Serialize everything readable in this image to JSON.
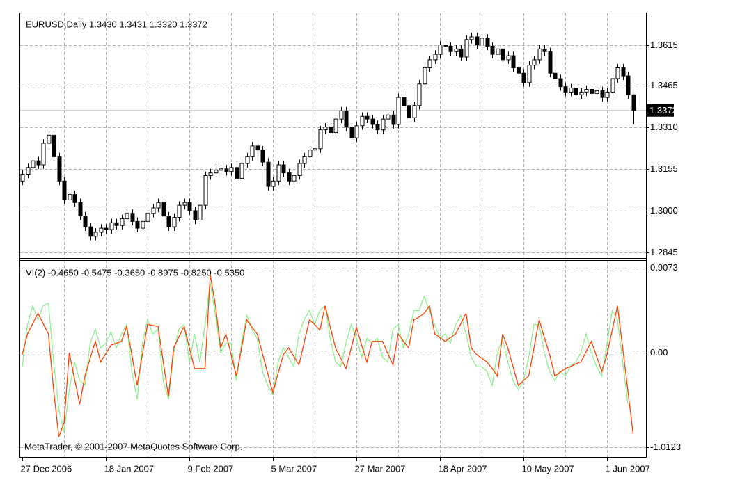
{
  "chart_data": [
    {
      "type": "candlestick",
      "title": "EURUSD,Daily  1.3430 1.3431 1.3320 1.3372",
      "categories": [
        "27 Dec 2006",
        null,
        null,
        null,
        null,
        null,
        null,
        null,
        null,
        null,
        null,
        null,
        null,
        null,
        null,
        null,
        "18 Jan 2007",
        null,
        null,
        null,
        null,
        null,
        null,
        null,
        null,
        null,
        null,
        null,
        null,
        null,
        null,
        null,
        "9 Feb 2007",
        null,
        null,
        null,
        null,
        null,
        null,
        null,
        null,
        null,
        null,
        null,
        null,
        null,
        null,
        null,
        "5 Mar 2007",
        null,
        null,
        null,
        null,
        null,
        null,
        null,
        null,
        null,
        null,
        null,
        null,
        null,
        null,
        null,
        "27 Mar 2007",
        null,
        null,
        null,
        null,
        null,
        null,
        null,
        null,
        null,
        null,
        null,
        null,
        null,
        null,
        null,
        "18 Apr 2007",
        null,
        null,
        null,
        null,
        null,
        null,
        null,
        null,
        null,
        null,
        null,
        null,
        null,
        null,
        null,
        "10 May 2007",
        null,
        null,
        null,
        null,
        null,
        null,
        null,
        null,
        null,
        null,
        null,
        null,
        null,
        null,
        null,
        "1 Jun 2007",
        null,
        null,
        null,
        null,
        null
      ],
      "open": [
        1.311,
        1.3135,
        1.316,
        1.3185,
        1.317,
        1.325,
        1.328,
        1.32,
        1.311,
        1.304,
        1.306,
        1.303,
        1.298,
        1.294,
        1.2905,
        1.292,
        1.2935,
        1.293,
        1.2955,
        1.2945,
        1.297,
        1.299,
        1.296,
        1.2935,
        1.296,
        1.299,
        1.301,
        1.303,
        1.298,
        1.294,
        1.2975,
        1.302,
        1.303,
        1.3,
        1.2965,
        1.302,
        1.313,
        1.314,
        1.315,
        1.3155,
        1.3145,
        1.316,
        1.312,
        1.3175,
        1.32,
        1.324,
        1.3225,
        1.318,
        1.309,
        1.311,
        1.317,
        1.314,
        1.311,
        1.313,
        1.3175,
        1.32,
        1.3225,
        1.323,
        1.33,
        1.331,
        1.329,
        1.334,
        1.337,
        1.331,
        1.327,
        1.3315,
        1.335,
        1.334,
        1.332,
        1.33,
        1.334,
        1.3355,
        1.332,
        1.342,
        1.339,
        1.3345,
        1.339,
        1.347,
        1.353,
        1.356,
        1.358,
        1.3615,
        1.361,
        1.359,
        1.36,
        1.357,
        1.3635,
        1.3645,
        1.3615,
        1.364,
        1.361,
        1.358,
        1.36,
        1.356,
        1.3575,
        1.353,
        1.351,
        1.3475,
        1.354,
        1.356,
        1.36,
        1.359,
        1.351,
        1.349,
        1.346,
        1.344,
        1.3455,
        1.343,
        1.344,
        1.345,
        1.3435,
        1.3445,
        1.342,
        1.344,
        1.349,
        1.353,
        1.35,
        1.343
      ],
      "high": [
        1.315,
        1.3175,
        1.32,
        1.32,
        1.3265,
        1.3295,
        1.3295,
        1.3215,
        1.3125,
        1.3075,
        1.3075,
        1.3045,
        1.2995,
        1.2955,
        1.2935,
        1.295,
        1.295,
        1.297,
        1.297,
        1.2985,
        1.3005,
        1.3005,
        1.2975,
        1.2975,
        1.3005,
        1.3025,
        1.3045,
        1.3045,
        1.2995,
        1.299,
        1.3035,
        1.3045,
        1.3045,
        1.3015,
        1.3035,
        1.3145,
        1.3155,
        1.3165,
        1.317,
        1.317,
        1.3175,
        1.3175,
        1.319,
        1.3215,
        1.3255,
        1.3255,
        1.324,
        1.3195,
        1.3125,
        1.3185,
        1.3185,
        1.3155,
        1.3145,
        1.319,
        1.3215,
        1.324,
        1.3245,
        1.3315,
        1.3325,
        1.3325,
        1.3355,
        1.3385,
        1.3385,
        1.3325,
        1.333,
        1.3365,
        1.3365,
        1.3355,
        1.3335,
        1.3355,
        1.337,
        1.337,
        1.3435,
        1.3435,
        1.3405,
        1.3405,
        1.3485,
        1.3545,
        1.3575,
        1.3595,
        1.363,
        1.363,
        1.3625,
        1.3615,
        1.3615,
        1.365,
        1.366,
        1.366,
        1.3655,
        1.3655,
        1.3625,
        1.3615,
        1.3615,
        1.359,
        1.359,
        1.3545,
        1.3525,
        1.3555,
        1.3575,
        1.3615,
        1.3615,
        1.3605,
        1.3525,
        1.3505,
        1.3475,
        1.347,
        1.347,
        1.3455,
        1.3465,
        1.3465,
        1.346,
        1.346,
        1.3455,
        1.3505,
        1.3545,
        1.3545,
        1.3515,
        1.3431
      ],
      "low": [
        1.3095,
        1.312,
        1.3145,
        1.3155,
        1.3155,
        1.3235,
        1.3185,
        1.3095,
        1.3025,
        1.3025,
        1.3015,
        1.2965,
        1.2925,
        1.289,
        1.289,
        1.2905,
        1.2915,
        1.2915,
        1.293,
        1.293,
        1.2955,
        1.2945,
        1.292,
        1.292,
        1.2945,
        1.2975,
        1.2995,
        1.2965,
        1.2925,
        1.2925,
        1.296,
        1.3005,
        1.2985,
        1.295,
        1.295,
        1.3005,
        1.3115,
        1.3125,
        1.3135,
        1.313,
        1.313,
        1.3105,
        1.3105,
        1.316,
        1.3185,
        1.321,
        1.3165,
        1.3075,
        1.3075,
        1.3095,
        1.3125,
        1.3095,
        1.3095,
        1.3115,
        1.316,
        1.3185,
        1.321,
        1.3215,
        1.3285,
        1.3275,
        1.3275,
        1.3325,
        1.3295,
        1.3255,
        1.3255,
        1.33,
        1.3325,
        1.3305,
        1.3285,
        1.3285,
        1.3325,
        1.3305,
        1.3305,
        1.3375,
        1.333,
        1.333,
        1.3375,
        1.3455,
        1.3515,
        1.3545,
        1.3565,
        1.3595,
        1.3575,
        1.3575,
        1.3555,
        1.3555,
        1.362,
        1.36,
        1.36,
        1.3595,
        1.3565,
        1.3565,
        1.3545,
        1.3545,
        1.3515,
        1.3495,
        1.346,
        1.346,
        1.3525,
        1.3545,
        1.3575,
        1.3495,
        1.3475,
        1.3445,
        1.3425,
        1.3425,
        1.3415,
        1.3415,
        1.3425,
        1.342,
        1.342,
        1.3405,
        1.3405,
        1.3425,
        1.3475,
        1.3485,
        1.3415,
        1.332
      ],
      "close": [
        1.3135,
        1.316,
        1.3185,
        1.317,
        1.325,
        1.328,
        1.32,
        1.311,
        1.304,
        1.306,
        1.303,
        1.298,
        1.294,
        1.2905,
        1.292,
        1.2935,
        1.293,
        1.2955,
        1.2945,
        1.297,
        1.299,
        1.296,
        1.2935,
        1.296,
        1.299,
        1.301,
        1.303,
        1.298,
        1.294,
        1.2975,
        1.302,
        1.303,
        1.3,
        1.2965,
        1.302,
        1.313,
        1.314,
        1.315,
        1.3155,
        1.3145,
        1.316,
        1.312,
        1.3175,
        1.32,
        1.324,
        1.3225,
        1.318,
        1.309,
        1.311,
        1.317,
        1.314,
        1.311,
        1.313,
        1.3175,
        1.32,
        1.3225,
        1.323,
        1.33,
        1.331,
        1.329,
        1.334,
        1.337,
        1.331,
        1.327,
        1.3315,
        1.335,
        1.334,
        1.332,
        1.33,
        1.334,
        1.3355,
        1.332,
        1.342,
        1.339,
        1.3345,
        1.339,
        1.347,
        1.353,
        1.356,
        1.358,
        1.3615,
        1.361,
        1.359,
        1.36,
        1.357,
        1.3635,
        1.3645,
        1.3615,
        1.364,
        1.361,
        1.358,
        1.36,
        1.356,
        1.3575,
        1.353,
        1.351,
        1.3475,
        1.354,
        1.356,
        1.36,
        1.359,
        1.351,
        1.349,
        1.346,
        1.344,
        1.3455,
        1.343,
        1.344,
        1.345,
        1.3435,
        1.3445,
        1.342,
        1.344,
        1.349,
        1.353,
        1.35,
        1.343,
        1.3372
      ],
      "ylim": [
        1.2832,
        1.373
      ],
      "yticks": [
        1.2845,
        {
          "value": 1.3,
          "label": "1.3000"
        },
        1.3155,
        {
          "value": 1.331,
          "label": "1.3310"
        },
        1.3465,
        1.3615
      ],
      "grid": true
    },
    {
      "type": "line",
      "title": "VI(2) -0.4650 -0.5475 -0.3650 -0.8975 -0.8250 -0.5350",
      "series": [
        {
          "color": "#ff4000",
          "values": [
            -0.02,
            0.2,
            0.31,
            0.42,
            0.31,
            0.2,
            -0.4,
            -0.9,
            -0.75,
            0.0,
            -0.28,
            -0.55,
            -0.25,
            -0.06,
            0.12,
            -0.1,
            -0.01,
            0.08,
            0.1,
            0.12,
            0.28,
            -0.03,
            -0.35,
            -0.02,
            0.3,
            0.29,
            0.28,
            -0.1,
            -0.47,
            0.05,
            0.17,
            0.28,
            0.05,
            -0.17,
            -0.17,
            -0.17,
            0.83,
            0.5,
            0.05,
            0.2,
            -0.02,
            -0.25,
            0.05,
            0.35,
            0.27,
            0.2,
            -0.01,
            -0.22,
            -0.43,
            -0.22,
            -0.02,
            0.05,
            -0.04,
            -0.13,
            0.11,
            0.35,
            0.3,
            0.24,
            0.5,
            0.27,
            0.05,
            -0.06,
            -0.17,
            0.05,
            0.27,
            0.08,
            -0.1,
            0.12,
            0.12,
            0.12,
            -0.01,
            -0.13,
            0.2,
            0.12,
            0.05,
            0.35,
            0.38,
            0.42,
            0.5,
            0.2,
            0.16,
            0.12,
            0.16,
            0.2,
            0.31,
            0.42,
            0.05,
            -0.02,
            -0.06,
            -0.1,
            -0.17,
            -0.25,
            0.2,
            0.05,
            -0.15,
            -0.35,
            -0.3,
            -0.25,
            0.05,
            0.35,
            0.16,
            -0.02,
            -0.25,
            -0.21,
            -0.17,
            -0.15,
            -0.12,
            -0.1,
            0.01,
            0.12,
            -0.04,
            -0.2,
            -0.02,
            0.24,
            0.5,
            0.05,
            -0.41,
            -0.87
          ]
        },
        {
          "color": "#90ee90",
          "values": [
            -0.15,
            0.3,
            0.5,
            0.35,
            0.5,
            0.53,
            -0.1,
            -0.6,
            -0.85,
            -0.4,
            -0.1,
            -0.3,
            -0.35,
            0.1,
            0.25,
            0.05,
            0.1,
            0.22,
            0.05,
            0.2,
            0.3,
            -0.2,
            -0.5,
            0.1,
            0.35,
            0.2,
            0.25,
            -0.3,
            -0.5,
            0.0,
            0.25,
            0.3,
            -0.1,
            0.2,
            -0.1,
            0.3,
            0.75,
            0.4,
            0.0,
            0.1,
            0.1,
            -0.3,
            0.1,
            0.4,
            0.25,
            0.15,
            -0.2,
            -0.35,
            -0.45,
            -0.1,
            0.05,
            -0.05,
            -0.15,
            0.2,
            0.35,
            0.45,
            0.3,
            0.45,
            0.5,
            0.15,
            -0.1,
            -0.15,
            0.1,
            0.3,
            0.15,
            -0.05,
            0.15,
            0.1,
            0.15,
            -0.05,
            -0.1,
            0.25,
            0.3,
            0.05,
            0.2,
            0.45,
            0.45,
            0.6,
            0.45,
            0.3,
            0.15,
            0.2,
            0.1,
            0.3,
            0.4,
            0.2,
            -0.05,
            -0.15,
            -0.15,
            -0.2,
            -0.35,
            0.0,
            0.15,
            -0.1,
            -0.3,
            -0.4,
            -0.3,
            -0.05,
            0.3,
            0.3,
            0.0,
            -0.2,
            -0.3,
            -0.2,
            -0.25,
            -0.15,
            -0.1,
            0.0,
            0.2,
            0.0,
            -0.15,
            -0.25,
            0.1,
            0.45,
            0.35,
            -0.1,
            -0.55,
            null
          ]
        }
      ],
      "ylim": [
        -1.1,
        0.98
      ],
      "yticks": [
        0.9073,
        {
          "value": 0,
          "label": "0.00"
        },
        -1.0123
      ],
      "grid": true
    }
  ],
  "footer": "MetaTrader, © 2001-2007 MetaQuotes Software Corp."
}
